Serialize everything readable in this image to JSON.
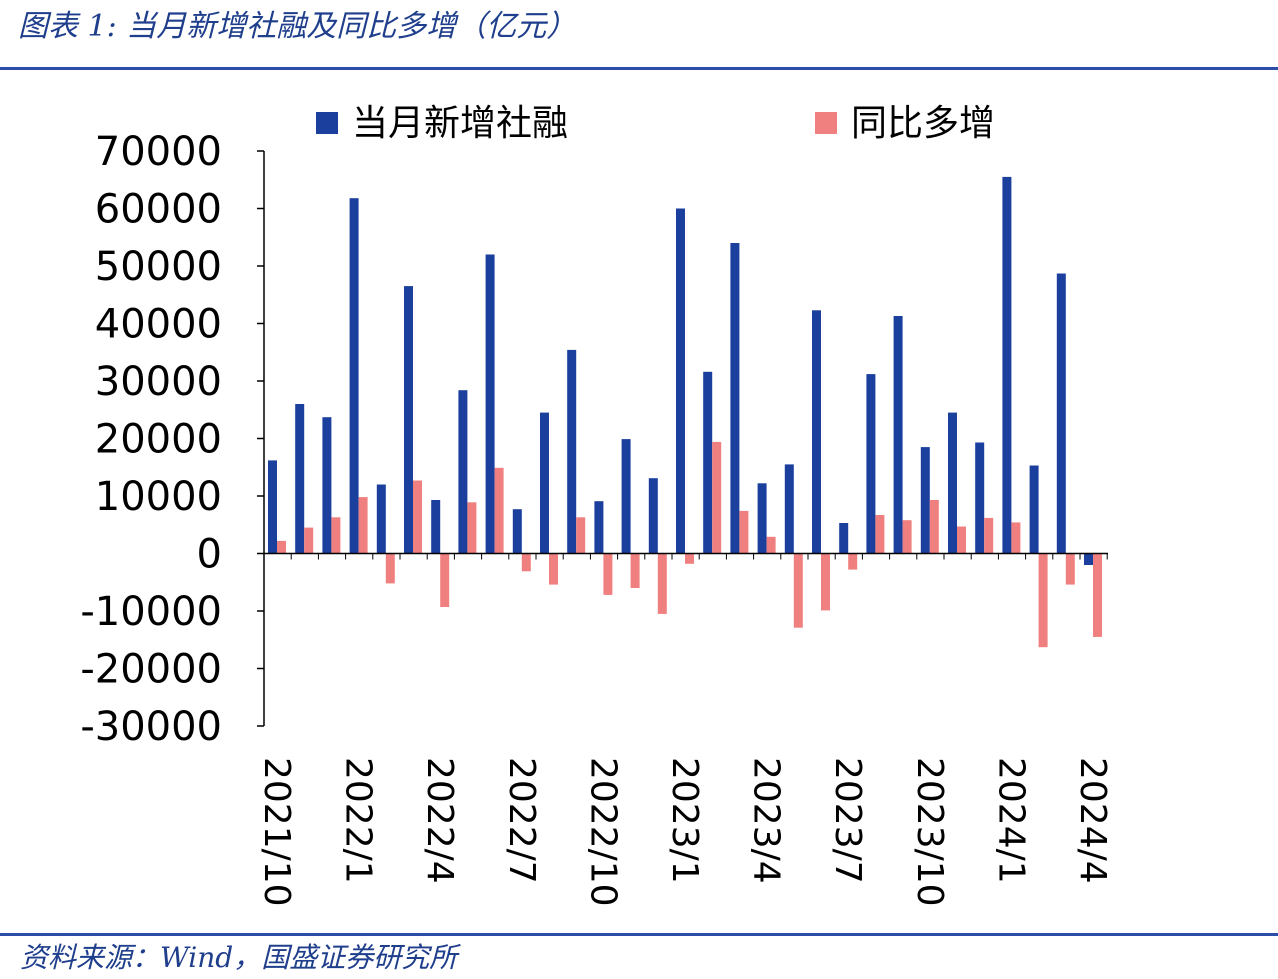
{
  "caption": "图表 1:  当月新增社融及同比多增（亿元）",
  "source": "资料来源：Wind，国盛证券研究所",
  "colors": {
    "series_new": "#1a3f9c",
    "series_yoy": "#f08080",
    "caption": "#1f3e8c",
    "rule": "#2b4ea8"
  },
  "chart_data": {
    "type": "bar",
    "title": "",
    "xlabel": "",
    "ylabel": "",
    "ylim": [
      -30000,
      70000
    ],
    "yticks": [
      70000,
      60000,
      50000,
      40000,
      30000,
      20000,
      10000,
      0,
      -10000,
      -20000,
      -30000
    ],
    "categories": [
      "2021/10",
      "2021/11",
      "2021/12",
      "2022/1",
      "2022/2",
      "2022/3",
      "2022/4",
      "2022/5",
      "2022/6",
      "2022/7",
      "2022/8",
      "2022/9",
      "2022/10",
      "2022/11",
      "2022/12",
      "2023/1",
      "2023/2",
      "2023/3",
      "2023/4",
      "2023/5",
      "2023/6",
      "2023/7",
      "2023/8",
      "2023/9",
      "2023/10",
      "2023/11",
      "2023/12",
      "2024/1",
      "2024/2",
      "2024/3",
      "2024/4"
    ],
    "tick_labels": [
      "2021/10",
      "2022/1",
      "2022/4",
      "2022/7",
      "2022/10",
      "2023/1",
      "2023/4",
      "2023/7",
      "2023/10",
      "2024/1",
      "2024/4"
    ],
    "series": [
      {
        "name": "当月新增社融",
        "values": [
          16200,
          26000,
          23700,
          61800,
          12000,
          46500,
          9300,
          28400,
          52000,
          7700,
          24500,
          35400,
          9100,
          19900,
          13100,
          60000,
          31600,
          54000,
          12200,
          15500,
          42300,
          5300,
          31200,
          41300,
          18500,
          24500,
          19300,
          65500,
          15300,
          48700,
          -2000
        ]
      },
      {
        "name": "同比多增",
        "values": [
          2200,
          4500,
          6300,
          9800,
          -5200,
          12700,
          -9300,
          8900,
          14900,
          -3100,
          -5400,
          6300,
          -7200,
          -6000,
          -10500,
          -1800,
          19400,
          7400,
          2900,
          -12900,
          -9900,
          -2800,
          6700,
          5800,
          9300,
          4700,
          6200,
          5400,
          -16300,
          -5400,
          -14500
        ]
      }
    ],
    "legend_position": "top"
  }
}
